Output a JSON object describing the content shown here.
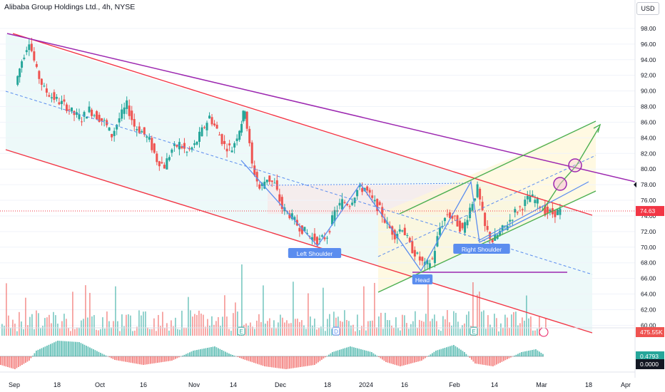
{
  "title": "Alibaba Group Holdings Ltd., 4h, NYSE",
  "currency_button": "USD",
  "chart_data": {
    "type": "candlestick",
    "y_axis": {
      "ylim": [
        59,
        99.5
      ],
      "ticks": [
        "98.00",
        "96.00",
        "94.00",
        "92.00",
        "90.00",
        "88.00",
        "86.00",
        "84.00",
        "82.00",
        "80.00",
        "78.00",
        "76.00",
        "74.00",
        "72.00",
        "70.00",
        "68.00",
        "66.00",
        "64.00",
        "62.00",
        "60.00"
      ]
    },
    "x_axis": {
      "ticks": [
        "Sep",
        "18",
        "Oct",
        "16",
        "Nov",
        "14",
        "Dec",
        "18",
        "2024",
        "16",
        "Feb",
        "14",
        "Mar",
        "18",
        "Apr"
      ]
    },
    "last_price": "74.63",
    "last_price_value": 74.63,
    "level_78": "78.00",
    "volume_label": "475.55K",
    "oscillator": {
      "upper": "0.4793",
      "lower": "0.0000"
    },
    "pattern_labels": [
      "Left Shoulder",
      "Head",
      "Right Shoulder"
    ],
    "event_markers": [
      "E",
      "D",
      "E"
    ],
    "colors": {
      "up": "#26a69a",
      "down": "#ef5350",
      "channel": "#f23645",
      "trend": "#9c27b0",
      "green_channel": "#4caf50",
      "dashed": "#5b8def"
    },
    "price_series": [
      {
        "x": 0.15,
        "y": 90.8
      },
      {
        "x": 0.4,
        "y": 93.9
      },
      {
        "x": 0.7,
        "y": 96.5
      },
      {
        "x": 1.0,
        "y": 92.5
      },
      {
        "x": 1.3,
        "y": 90.2
      },
      {
        "x": 1.6,
        "y": 89.3
      },
      {
        "x": 1.9,
        "y": 88.6
      },
      {
        "x": 2.2,
        "y": 88.0
      },
      {
        "x": 2.5,
        "y": 87.0
      },
      {
        "x": 2.8,
        "y": 86.5
      },
      {
        "x": 3.1,
        "y": 87.6
      },
      {
        "x": 3.4,
        "y": 86.8
      },
      {
        "x": 3.7,
        "y": 86.0
      },
      {
        "x": 4.0,
        "y": 84.3
      },
      {
        "x": 4.3,
        "y": 86.5
      },
      {
        "x": 4.6,
        "y": 88.2
      },
      {
        "x": 4.9,
        "y": 85.5
      },
      {
        "x": 5.2,
        "y": 84.8
      },
      {
        "x": 5.5,
        "y": 83.6
      },
      {
        "x": 5.8,
        "y": 81.2
      },
      {
        "x": 6.1,
        "y": 80.4
      },
      {
        "x": 6.4,
        "y": 82.5
      },
      {
        "x": 6.7,
        "y": 83.2
      },
      {
        "x": 7.0,
        "y": 82.1
      },
      {
        "x": 7.3,
        "y": 83.0
      },
      {
        "x": 7.6,
        "y": 84.9
      },
      {
        "x": 7.9,
        "y": 86.7
      },
      {
        "x": 8.2,
        "y": 85.0
      },
      {
        "x": 8.5,
        "y": 83.0
      },
      {
        "x": 8.8,
        "y": 82.6
      },
      {
        "x": 9.1,
        "y": 85.2
      },
      {
        "x": 9.3,
        "y": 87.8
      },
      {
        "x": 9.6,
        "y": 80.5
      },
      {
        "x": 9.9,
        "y": 77.5
      },
      {
        "x": 10.2,
        "y": 78.9
      },
      {
        "x": 10.5,
        "y": 78.0
      },
      {
        "x": 10.8,
        "y": 75.0
      },
      {
        "x": 11.1,
        "y": 74.2
      },
      {
        "x": 11.4,
        "y": 72.9
      },
      {
        "x": 11.7,
        "y": 72.0
      },
      {
        "x": 12.0,
        "y": 71.2
      },
      {
        "x": 12.3,
        "y": 70.8
      },
      {
        "x": 12.6,
        "y": 71.5
      },
      {
        "x": 12.9,
        "y": 74.5
      },
      {
        "x": 13.2,
        "y": 75.8
      },
      {
        "x": 13.5,
        "y": 75.6
      },
      {
        "x": 13.8,
        "y": 77.3
      },
      {
        "x": 14.1,
        "y": 77.6
      },
      {
        "x": 14.4,
        "y": 76.0
      },
      {
        "x": 14.7,
        "y": 74.8
      },
      {
        "x": 15.0,
        "y": 72.8
      },
      {
        "x": 15.3,
        "y": 71.6
      },
      {
        "x": 15.6,
        "y": 72.6
      },
      {
        "x": 15.9,
        "y": 70.2
      },
      {
        "x": 16.2,
        "y": 68.8
      },
      {
        "x": 16.5,
        "y": 67.6
      },
      {
        "x": 16.8,
        "y": 68.4
      },
      {
        "x": 17.1,
        "y": 72.5
      },
      {
        "x": 17.4,
        "y": 74.3
      },
      {
        "x": 17.7,
        "y": 73.5
      },
      {
        "x": 18.0,
        "y": 72.1
      },
      {
        "x": 18.3,
        "y": 75.0
      },
      {
        "x": 18.6,
        "y": 77.5
      },
      {
        "x": 18.9,
        "y": 72.5
      },
      {
        "x": 19.2,
        "y": 70.8
      },
      {
        "x": 19.5,
        "y": 71.9
      },
      {
        "x": 19.8,
        "y": 73.0
      },
      {
        "x": 20.1,
        "y": 74.5
      },
      {
        "x": 20.4,
        "y": 75.3
      },
      {
        "x": 20.7,
        "y": 76.5
      },
      {
        "x": 21.0,
        "y": 75.7
      },
      {
        "x": 21.3,
        "y": 74.6
      },
      {
        "x": 21.6,
        "y": 74.3
      },
      {
        "x": 21.9,
        "y": 74.63
      }
    ]
  }
}
